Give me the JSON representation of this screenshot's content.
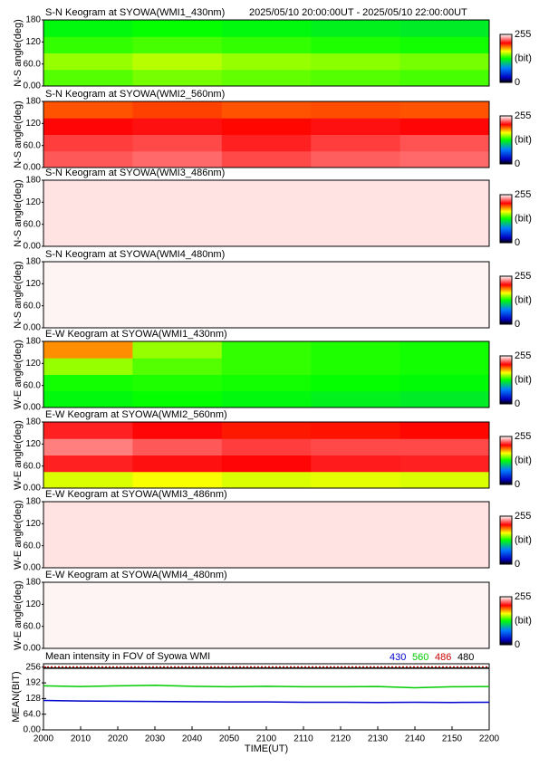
{
  "chart_data": [
    {
      "type": "heatmap",
      "title": "S-N Keogram at SYOWA(WMI1_430nm)",
      "subtitle": "2025/05/10 20:00:00UT - 2025/05/10 22:00:00UT",
      "ylabel": "N-S angle(deg)",
      "ylim": [
        0,
        180
      ],
      "yticks": [
        {
          "value": 0,
          "label": "0.00"
        },
        {
          "value": 60,
          "label": "60.0"
        },
        120,
        180
      ],
      "values": [
        [
          140,
          145,
          142,
          140,
          138
        ],
        [
          150,
          155,
          150,
          148,
          145
        ],
        [
          135,
          138,
          135,
          132,
          130
        ],
        [
          125,
          128,
          125,
          122,
          120
        ]
      ],
      "zlim": [
        0,
        255
      ],
      "zticks": [
        0,
        255
      ],
      "zlabel": "(bit)"
    },
    {
      "type": "heatmap",
      "title": "S-N Keogram at SYOWA(WMI2_560nm)",
      "ylabel": "N-S angle(deg)",
      "ylim": [
        0,
        180
      ],
      "yticks": [
        {
          "value": 0,
          "label": "0.00"
        },
        {
          "value": 60,
          "label": "60.0"
        },
        120,
        180
      ],
      "values": [
        [
          225,
          228,
          222,
          226,
          228
        ],
        [
          220,
          222,
          215,
          220,
          224
        ],
        [
          210,
          212,
          208,
          212,
          210
        ],
        [
          195,
          198,
          195,
          196,
          195
        ]
      ],
      "zlim": [
        0,
        255
      ],
      "zticks": [
        0,
        255
      ],
      "zlabel": "(bit)"
    },
    {
      "type": "heatmap",
      "title": "S-N Keogram at SYOWA(WMI3_486nm)",
      "ylabel": "N-S angle(deg)",
      "ylim": [
        0,
        180
      ],
      "yticks": [
        {
          "value": 0,
          "label": "0.00"
        },
        {
          "value": 60,
          "label": "60.0"
        },
        120,
        180
      ],
      "values": [
        [
          250,
          250,
          250,
          250,
          250
        ],
        [
          250,
          250,
          250,
          250,
          250
        ],
        [
          250,
          250,
          250,
          250,
          250
        ],
        [
          250,
          250,
          250,
          250,
          250
        ]
      ],
      "zlim": [
        0,
        255
      ],
      "zticks": [
        0,
        255
      ],
      "zlabel": "(bit)"
    },
    {
      "type": "heatmap",
      "title": "S-N Keogram at SYOWA(WMI4_480nm)",
      "ylabel": "N-S angle(deg)",
      "ylim": [
        0,
        180
      ],
      "yticks": [
        {
          "value": 0,
          "label": "0.00"
        },
        {
          "value": 60,
          "label": "60.0"
        },
        120,
        180
      ],
      "values": [
        [
          253,
          253,
          253,
          253,
          253
        ],
        [
          253,
          253,
          253,
          253,
          253
        ],
        [
          253,
          253,
          253,
          253,
          253
        ],
        [
          253,
          253,
          253,
          253,
          253
        ]
      ],
      "zlim": [
        0,
        255
      ],
      "zticks": [
        0,
        255
      ],
      "zlabel": "(bit)"
    },
    {
      "type": "heatmap",
      "title": "E-W Keogram at SYOWA(WMI1_430nm)",
      "ylabel": "W-E angle(deg)",
      "ylim": [
        0,
        180
      ],
      "yticks": [
        {
          "value": 0,
          "label": "0.00"
        },
        {
          "value": 60,
          "label": "60.0"
        },
        120,
        180
      ],
      "values": [
        [
          125,
          128,
          125,
          122,
          120
        ],
        [
          130,
          132,
          130,
          128,
          126
        ],
        [
          150,
          140,
          135,
          132,
          130
        ],
        [
          185,
          150,
          135,
          132,
          130
        ]
      ],
      "zlim": [
        0,
        255
      ],
      "zticks": [
        0,
        255
      ],
      "zlabel": "(bit)"
    },
    {
      "type": "heatmap",
      "title": "E-W Keogram at SYOWA(WMI2_560nm)",
      "ylabel": "W-E angle(deg)",
      "ylim": [
        0,
        180
      ],
      "yticks": [
        {
          "value": 0,
          "label": "0.00"
        },
        {
          "value": 60,
          "label": "60.0"
        },
        120,
        180
      ],
      "values": [
        [
          160,
          165,
          160,
          162,
          160
        ],
        [
          215,
          212,
          210,
          214,
          215
        ],
        [
          232,
          225,
          220,
          222,
          222
        ],
        [
          215,
          210,
          205,
          206,
          208
        ]
      ],
      "zlim": [
        0,
        255
      ],
      "zticks": [
        0,
        255
      ],
      "zlabel": "(bit)"
    },
    {
      "type": "heatmap",
      "title": "E-W Keogram at SYOWA(WMI3_486nm)",
      "ylabel": "W-E angle(deg)",
      "ylim": [
        0,
        180
      ],
      "yticks": [
        {
          "value": 0,
          "label": "0.00"
        },
        {
          "value": 60,
          "label": "60.0"
        },
        120,
        180
      ],
      "values": [
        [
          250,
          250,
          250,
          250,
          250
        ],
        [
          250,
          250,
          250,
          250,
          250
        ],
        [
          250,
          250,
          250,
          250,
          250
        ],
        [
          250,
          250,
          250,
          250,
          250
        ]
      ],
      "zlim": [
        0,
        255
      ],
      "zticks": [
        0,
        255
      ],
      "zlabel": "(bit)"
    },
    {
      "type": "heatmap",
      "title": "E-W Keogram at SYOWA(WMI4_480nm)",
      "ylabel": "W-E angle(deg)",
      "ylim": [
        0,
        180
      ],
      "yticks": [
        {
          "value": 0,
          "label": "0.00"
        },
        {
          "value": 60,
          "label": "60.0"
        },
        120,
        180
      ],
      "values": [
        [
          253,
          253,
          253,
          253,
          253
        ],
        [
          253,
          253,
          253,
          253,
          253
        ],
        [
          253,
          253,
          253,
          253,
          253
        ],
        [
          253,
          253,
          253,
          253,
          253
        ]
      ],
      "zlim": [
        0,
        255
      ],
      "zticks": [
        0,
        255
      ],
      "zlabel": "(bit)"
    },
    {
      "type": "line",
      "title": "Mean intensity in FOV of Syowa WMI",
      "xlabel": "TIME(UT)",
      "ylabel": "MEAN(BIT)",
      "x": [
        "2000",
        "2010",
        "2020",
        "2030",
        "2040",
        "2050",
        "2100",
        "2110",
        "2120",
        "2130",
        "2140",
        "2150",
        "2200"
      ],
      "ylim": [
        0,
        270
      ],
      "yticks": [
        {
          "value": 0,
          "label": "0.00"
        },
        {
          "value": 64,
          "label": "64.0"
        },
        128,
        192,
        256
      ],
      "series": [
        {
          "name": "430",
          "color": "#0000cc",
          "values": [
            120,
            118,
            117,
            116,
            115,
            114,
            114,
            113,
            113,
            112,
            113,
            112,
            113
          ]
        },
        {
          "name": "560",
          "color": "#00cc00",
          "values": [
            180,
            177,
            180,
            182,
            178,
            176,
            178,
            176,
            176,
            177,
            172,
            176,
            177
          ]
        },
        {
          "name": "486",
          "color": "#cc0000",
          "values": [
            257,
            257,
            257,
            257,
            257,
            257,
            257,
            257,
            257,
            257,
            257,
            257,
            257
          ]
        },
        {
          "name": "480",
          "color": "#000000",
          "values": [
            252,
            252,
            252,
            252,
            252,
            252,
            252,
            252,
            252,
            252,
            252,
            252,
            252
          ]
        }
      ]
    }
  ]
}
